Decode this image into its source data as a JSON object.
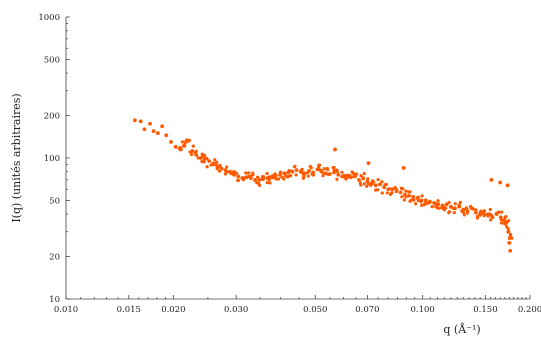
{
  "chart_data": {
    "type": "scatter",
    "title": "",
    "xlabel": "q (Å⁻¹)",
    "ylabel": "I(q) (unités arbitraires)",
    "xscale": "log",
    "yscale": "log",
    "xlim": [
      0.01,
      0.2
    ],
    "ylim": [
      10,
      1000
    ],
    "grid": false,
    "color": "#ff5a00",
    "x_ticks": [
      0.01,
      0.015,
      0.02,
      0.03,
      0.05,
      0.07,
      0.1,
      0.15,
      0.2
    ],
    "x_tick_labels": [
      "0.010",
      "0.015",
      "0.020",
      "0.030",
      "0.050",
      "0.070",
      "0.100",
      "0.150",
      "0.200"
    ],
    "y_ticks": [
      10,
      20,
      50,
      100,
      200,
      500,
      1000
    ],
    "y_tick_labels": [
      "10",
      "20",
      "50",
      "100",
      "200",
      "500",
      "1000"
    ],
    "series": [
      {
        "x": [
          0.0156,
          0.0162,
          0.0166,
          0.0172,
          0.0176,
          0.0181,
          0.0186,
          0.0191,
          0.0197,
          0.0203,
          0.0209,
          0.0214,
          0.022,
          0.0226,
          0.0232,
          0.0239,
          0.0245,
          0.0252,
          0.0259,
          0.0266,
          0.0273,
          0.028,
          0.0288,
          0.0296,
          0.0304,
          0.0312,
          0.0321,
          0.033,
          0.0339,
          0.0348,
          0.0357,
          0.0367,
          0.0377,
          0.0387,
          0.0398,
          0.0409,
          0.042,
          0.0431,
          0.0443,
          0.0455,
          0.0468,
          0.048,
          0.0493,
          0.0507,
          0.052,
          0.0535,
          0.0549,
          0.0564,
          0.058,
          0.0595,
          0.0612,
          0.0628,
          0.0646,
          0.0663,
          0.0681,
          0.07,
          0.0719,
          0.0739,
          0.0759,
          0.078,
          0.0801,
          0.0823,
          0.0845,
          0.0868,
          0.0892,
          0.0916,
          0.0941,
          0.0967,
          0.0993,
          0.102,
          0.1048,
          0.1077,
          0.1106,
          0.1137,
          0.1168,
          0.1199,
          0.1232,
          0.1266,
          0.13,
          0.1336,
          0.1372,
          0.141,
          0.1448,
          0.1488,
          0.1528,
          0.157,
          0.1612,
          0.1656,
          0.169,
          0.172,
          0.174,
          0.1755
        ],
        "y": [
          185,
          182,
          160,
          175,
          155,
          150,
          168,
          145,
          130,
          120,
          118,
          122,
          132,
          112,
          105,
          100,
          98,
          95,
          90,
          86,
          84,
          82,
          80,
          76,
          74,
          72,
          73,
          72,
          70,
          70,
          71,
          72,
          73,
          75,
          76,
          78,
          79,
          80,
          82,
          80,
          78,
          81,
          79,
          83,
          80,
          78,
          77,
          79,
          76,
          74,
          75,
          73,
          74,
          70,
          72,
          68,
          66,
          64,
          65,
          62,
          60,
          60,
          58,
          57,
          55,
          54,
          53,
          52,
          50,
          50,
          49,
          48,
          47,
          46,
          47,
          45,
          44,
          46,
          43,
          42,
          44,
          41,
          40,
          42,
          40,
          38,
          40,
          38,
          36,
          35,
          30,
          27
        ]
      }
    ],
    "outliers": [
      {
        "x": 0.0568,
        "y": 115
      },
      {
        "x": 0.0705,
        "y": 92
      },
      {
        "x": 0.0885,
        "y": 85
      },
      {
        "x": 0.156,
        "y": 70
      },
      {
        "x": 0.165,
        "y": 67
      },
      {
        "x": 0.173,
        "y": 64
      },
      {
        "x": 0.176,
        "y": 22
      },
      {
        "x": 0.175,
        "y": 25
      }
    ]
  }
}
